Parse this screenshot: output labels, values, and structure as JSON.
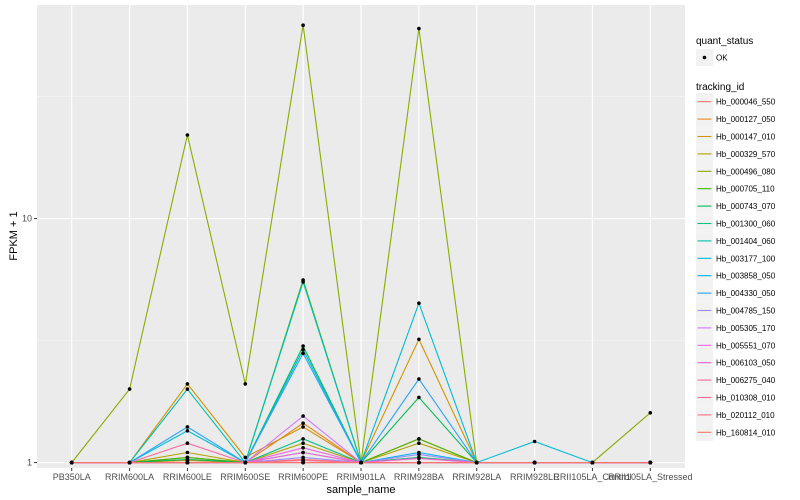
{
  "chart_data": {
    "type": "line",
    "xlabel": "sample_name",
    "ylabel": "FPKM + 1",
    "yscale": "log10",
    "ylim": [
      0.95,
      75
    ],
    "yticks": [
      1,
      10
    ],
    "ytick_labels": [
      "1",
      "10"
    ],
    "categories": [
      "PB350LA",
      "RRIM600LA",
      "RRIM600LE",
      "RRIM600SE",
      "RRIM600PE",
      "RRIM901LA",
      "RRIM928BA",
      "RRIM928LA",
      "RRIM928LE",
      "RRII105LA_Control",
      "RRII105LA_Stressed"
    ],
    "legend_quant": {
      "title": "quant_status",
      "entries": [
        "OK"
      ]
    },
    "legend_tracking": {
      "title": "tracking_id"
    },
    "series": [
      {
        "name": "Hb_000046_550",
        "color": "#F8766D",
        "values": [
          1,
          1,
          1.05,
          1,
          1.03,
          1,
          1.05,
          1,
          1,
          1,
          1
        ]
      },
      {
        "name": "Hb_000127_050",
        "color": "#E7851E",
        "values": [
          1,
          1,
          1.02,
          1,
          1.45,
          1,
          1.25,
          1,
          1,
          1,
          1
        ]
      },
      {
        "name": "Hb_000147_010",
        "color": "#D09400",
        "values": [
          1,
          1,
          2.1,
          1.05,
          1.4,
          1,
          3.2,
          1,
          1,
          1,
          1
        ]
      },
      {
        "name": "Hb_000329_570",
        "color": "#B2A100",
        "values": [
          1,
          1,
          1.1,
          1,
          1.2,
          1,
          1.2,
          1,
          1,
          1,
          1
        ]
      },
      {
        "name": "Hb_000496_080",
        "color": "#89AC00",
        "values": [
          1,
          2,
          22,
          2.1,
          62,
          1,
          60,
          1,
          1,
          1,
          1.6
        ]
      },
      {
        "name": "Hb_000705_110",
        "color": "#45B500",
        "values": [
          1,
          1,
          1.05,
          1,
          5.6,
          1,
          1.25,
          1,
          1,
          1,
          1
        ]
      },
      {
        "name": "Hb_000743_070",
        "color": "#00BC51",
        "values": [
          1,
          1,
          1.03,
          1,
          3.0,
          1,
          1.85,
          1,
          1,
          1,
          1
        ]
      },
      {
        "name": "Hb_001300_060",
        "color": "#00C087",
        "values": [
          1,
          1,
          1.0,
          1,
          1.25,
          1,
          1.05,
          1,
          1,
          1,
          1
        ]
      },
      {
        "name": "Hb_001404_060",
        "color": "#00C0B2",
        "values": [
          1,
          1,
          2.0,
          1,
          5.5,
          1,
          1.0,
          1,
          1,
          1,
          1
        ]
      },
      {
        "name": "Hb_003177_100",
        "color": "#00BCD6",
        "values": [
          1,
          1,
          1.35,
          1,
          2.9,
          1,
          4.5,
          1,
          1.22,
          1,
          1
        ]
      },
      {
        "name": "Hb_003858_050",
        "color": "#00B3F2",
        "values": [
          1,
          1,
          1.0,
          1,
          1.1,
          1,
          1.1,
          1,
          1,
          1,
          1
        ]
      },
      {
        "name": "Hb_004330_050",
        "color": "#29A3FF",
        "values": [
          1,
          1,
          1.4,
          1,
          2.8,
          1,
          2.2,
          1,
          1,
          1,
          1
        ]
      },
      {
        "name": "Hb_004785_150",
        "color": "#9C8DFF",
        "values": [
          1,
          1,
          1.0,
          1,
          1.05,
          1,
          1.08,
          1,
          1,
          1,
          1
        ]
      },
      {
        "name": "Hb_005305_170",
        "color": "#D277FF",
        "values": [
          1,
          1,
          1.0,
          1,
          1.55,
          1,
          1.0,
          1,
          1,
          1,
          1
        ]
      },
      {
        "name": "Hb_005551_070",
        "color": "#F166E8",
        "values": [
          1,
          1,
          1.0,
          1,
          1.15,
          1,
          1.0,
          1,
          1,
          1,
          1
        ]
      },
      {
        "name": "Hb_006103_050",
        "color": "#FF61C7",
        "values": [
          1,
          1,
          1.0,
          1,
          1.1,
          1,
          1.04,
          1,
          1,
          1,
          1
        ]
      },
      {
        "name": "Hb_006275_040",
        "color": "#FF689E",
        "values": [
          1,
          1,
          1.2,
          1,
          1.0,
          1,
          1.0,
          1,
          1,
          1,
          1
        ]
      },
      {
        "name": "Hb_010308_010",
        "color": "#FF6C91",
        "values": [
          1,
          1,
          1.0,
          1,
          1.02,
          1,
          1.0,
          1,
          1,
          1,
          1
        ]
      },
      {
        "name": "Hb_020112_010",
        "color": "#FF7080",
        "values": [
          1,
          1,
          1.0,
          1,
          1.0,
          1,
          1.0,
          1,
          1,
          1,
          1
        ]
      },
      {
        "name": "Hb_160814_010",
        "color": "#F8766D",
        "values": [
          1,
          1,
          1.0,
          1,
          1.0,
          1,
          1.0,
          1,
          1,
          1,
          1
        ]
      }
    ]
  }
}
